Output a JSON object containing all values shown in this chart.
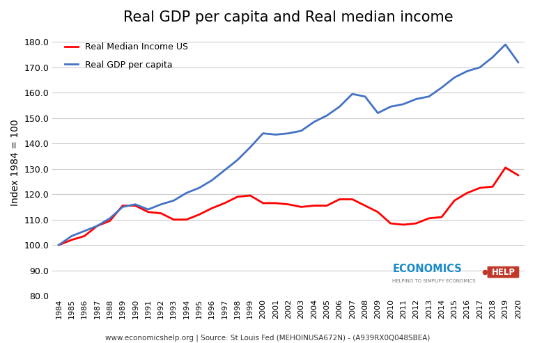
{
  "title": "Real GDP per capita and Real median income",
  "ylabel": "Index 1984 = 100",
  "footer": "www.economicshelp.org | Source: St Louis Fed (MEHOINUSA672N) - (A939RX0Q048SBEA)",
  "ylim": [
    80.0,
    185.0
  ],
  "yticks": [
    80.0,
    90.0,
    100.0,
    110.0,
    120.0,
    130.0,
    140.0,
    150.0,
    160.0,
    170.0,
    180.0
  ],
  "years": [
    1984,
    1985,
    1986,
    1987,
    1988,
    1989,
    1990,
    1991,
    1992,
    1993,
    1994,
    1995,
    1996,
    1997,
    1998,
    1999,
    2000,
    2001,
    2002,
    2003,
    2004,
    2005,
    2006,
    2007,
    2008,
    2009,
    2010,
    2011,
    2012,
    2013,
    2014,
    2015,
    2016,
    2017,
    2018,
    2019,
    2020
  ],
  "gdp_per_capita": [
    100.0,
    103.5,
    105.5,
    107.5,
    110.5,
    115.0,
    116.0,
    114.0,
    116.0,
    117.5,
    120.5,
    122.5,
    125.5,
    129.5,
    133.5,
    138.5,
    144.0,
    143.5,
    144.0,
    145.0,
    148.5,
    151.0,
    154.5,
    159.5,
    158.5,
    152.0,
    154.5,
    155.5,
    157.5,
    158.5,
    162.0,
    166.0,
    168.5,
    170.0,
    174.0,
    179.0,
    172.0
  ],
  "median_income": [
    100.0,
    102.0,
    103.5,
    107.5,
    109.5,
    115.5,
    115.5,
    113.0,
    112.5,
    110.0,
    110.0,
    112.0,
    114.5,
    116.5,
    119.0,
    119.5,
    116.5,
    116.5,
    116.0,
    115.0,
    115.5,
    115.5,
    118.0,
    118.0,
    115.5,
    113.0,
    108.5,
    108.0,
    108.5,
    110.5,
    111.0,
    117.5,
    120.5,
    122.5,
    123.0,
    130.5,
    127.5
  ],
  "gdp_color": "#4472C4",
  "income_color": "#FF0000",
  "background_color": "#FFFFFF",
  "grid_color": "#CCCCCC",
  "legend_income_label": "Real Median Income US",
  "legend_gdp_label": "Real GDP per capita",
  "logo_blue": "#1A8AC8",
  "logo_red": "#C0392B"
}
